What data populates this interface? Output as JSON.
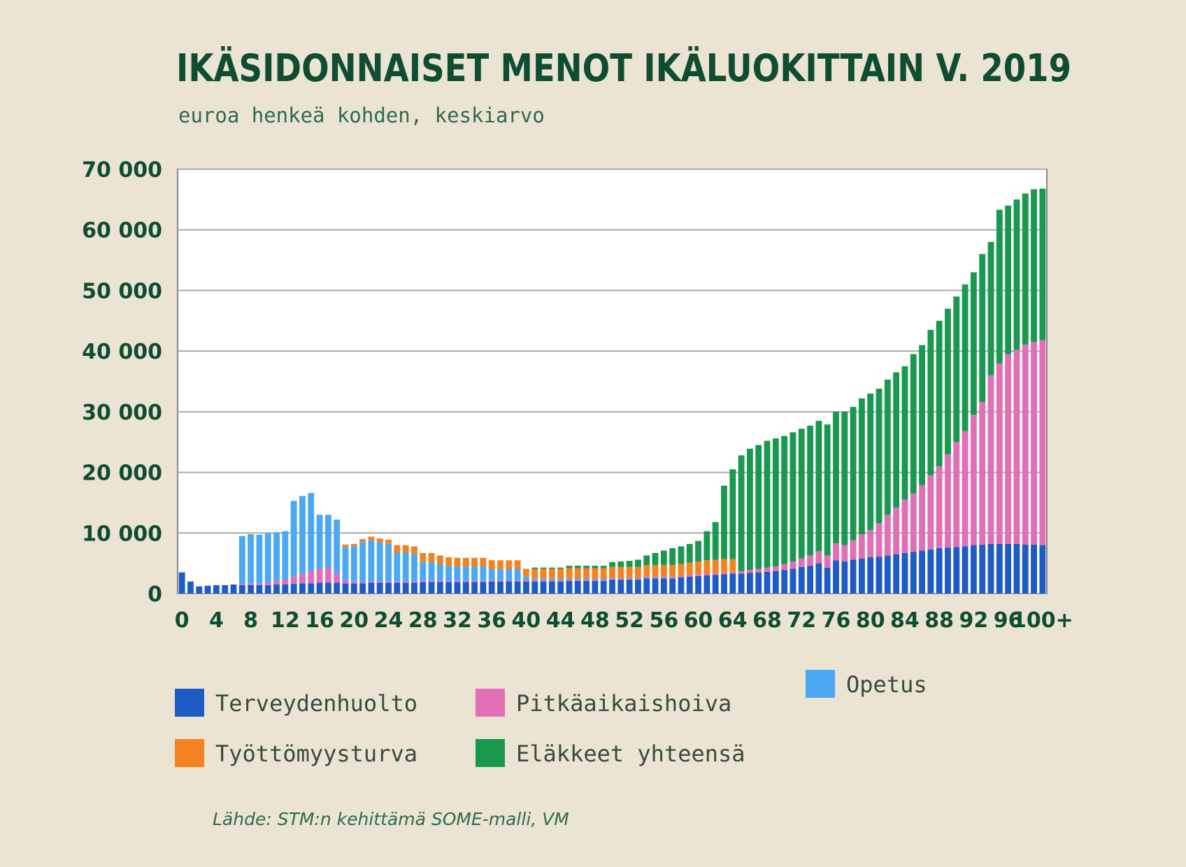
{
  "chart_data": {
    "type": "stacked_bar",
    "title": "IKÄSIDONNAISET MENOT IKÄLUOKITTAIN V. 2019",
    "subtitle": "euroa henkeä kohden, keskiarvo",
    "source": "Lähde: STM:n kehittämä SOME-malli, VM",
    "categories": [
      "0",
      null,
      null,
      null,
      "4",
      null,
      null,
      null,
      "8",
      null,
      null,
      null,
      "12",
      null,
      null,
      null,
      "16",
      null,
      null,
      null,
      "20",
      null,
      null,
      null,
      "24",
      null,
      null,
      null,
      "28",
      null,
      null,
      null,
      "32",
      null,
      null,
      null,
      "36",
      null,
      null,
      null,
      "40",
      null,
      null,
      null,
      "44",
      null,
      null,
      null,
      "48",
      null,
      null,
      null,
      "52",
      null,
      null,
      null,
      "56",
      null,
      null,
      null,
      "60",
      null,
      null,
      null,
      "64",
      null,
      null,
      null,
      "68",
      null,
      null,
      null,
      "72",
      null,
      null,
      null,
      "76",
      null,
      null,
      null,
      "80",
      null,
      null,
      null,
      "84",
      null,
      null,
      null,
      "88",
      null,
      null,
      null,
      "92",
      null,
      null,
      null,
      "96",
      null,
      null,
      null,
      "100+"
    ],
    "ylim": [
      0,
      70000
    ],
    "yticks": [
      0,
      {
        "value": 10000,
        "label": "10 000"
      },
      {
        "value": 20000,
        "label": "20 000"
      },
      {
        "value": 30000,
        "label": "30 000"
      },
      {
        "value": 40000,
        "label": "40 000"
      },
      {
        "value": 50000,
        "label": "50 000"
      },
      {
        "value": 60000,
        "label": "60 000"
      },
      {
        "value": 70000,
        "label": "70 000"
      }
    ],
    "grid": true,
    "series": [
      {
        "name": "Terveydenhuolto",
        "color": "#1f5bc4",
        "values": [
          3500,
          2000,
          1200,
          1300,
          1400,
          1400,
          1500,
          1400,
          1400,
          1400,
          1400,
          1500,
          1500,
          1600,
          1700,
          1700,
          1800,
          1800,
          1800,
          1700,
          1700,
          1700,
          1800,
          1800,
          1800,
          1800,
          1800,
          1800,
          1900,
          1900,
          1900,
          1900,
          1900,
          1900,
          1900,
          1900,
          2000,
          2000,
          2000,
          2000,
          2000,
          2000,
          2000,
          2000,
          2000,
          2100,
          2100,
          2100,
          2100,
          2100,
          2300,
          2300,
          2300,
          2300,
          2500,
          2500,
          2500,
          2500,
          2700,
          2800,
          2900,
          3000,
          3100,
          3200,
          3300,
          3300,
          3400,
          3500,
          3600,
          3700,
          3900,
          4100,
          4400,
          4600,
          5000,
          4300,
          5500,
          5300,
          5600,
          5800,
          6000,
          6100,
          6300,
          6500,
          6700,
          6900,
          7100,
          7300,
          7500,
          7600,
          7700,
          7800,
          8000,
          8100,
          8200,
          8200,
          8200,
          8200,
          8100,
          8100,
          8000
        ]
      },
      {
        "name": "Pitkäaikaishoiva",
        "color": "#e06fb5",
        "values": [
          0,
          0,
          0,
          0,
          0,
          0,
          0,
          200,
          300,
          300,
          500,
          600,
          800,
          1200,
          1600,
          2000,
          2300,
          2500,
          1500,
          500,
          300,
          200,
          200,
          200,
          200,
          200,
          200,
          200,
          200,
          200,
          200,
          200,
          200,
          200,
          200,
          200,
          200,
          200,
          200,
          200,
          200,
          200,
          200,
          200,
          200,
          200,
          200,
          200,
          200,
          200,
          200,
          200,
          200,
          200,
          200,
          200,
          200,
          200,
          200,
          300,
          300,
          300,
          300,
          300,
          300,
          400,
          500,
          600,
          700,
          800,
          1000,
          1200,
          1400,
          1700,
          2000,
          2000,
          2800,
          2700,
          3200,
          4000,
          4500,
          5500,
          6700,
          7700,
          8800,
          9600,
          10800,
          12200,
          13500,
          15400,
          17300,
          19000,
          21500,
          23500,
          27800,
          29800,
          31300,
          32000,
          33000,
          33400,
          33800
        ]
      },
      {
        "name": "Opetus",
        "color": "#4aa9f2",
        "values": [
          0,
          0,
          0,
          0,
          0,
          0,
          0,
          7900,
          8100,
          8000,
          8100,
          8000,
          8000,
          12500,
          12800,
          12900,
          8900,
          8700,
          8900,
          5500,
          5800,
          6600,
          6800,
          6500,
          6200,
          4800,
          4800,
          4500,
          3100,
          3100,
          2800,
          2500,
          2400,
          2400,
          2400,
          2400,
          1800,
          1800,
          1800,
          1800,
          600,
          300,
          300,
          300,
          300,
          200,
          200,
          200,
          200,
          200,
          100,
          100,
          100,
          100,
          100,
          100,
          100,
          100,
          0,
          0,
          0,
          0,
          0,
          0,
          0,
          0,
          0,
          0,
          0,
          0,
          0,
          0,
          0,
          0,
          0,
          0,
          0,
          0,
          0,
          0,
          0,
          0,
          0,
          0,
          0,
          0,
          0,
          0,
          0,
          0,
          0,
          0,
          0,
          0,
          0,
          0,
          0,
          0,
          0,
          0,
          0
        ]
      },
      {
        "name": "Työttömyysturva",
        "color": "#f58220",
        "values": [
          0,
          0,
          0,
          0,
          0,
          0,
          0,
          0,
          0,
          0,
          0,
          0,
          0,
          0,
          0,
          0,
          0,
          0,
          0,
          400,
          400,
          500,
          600,
          600,
          700,
          1200,
          1200,
          1300,
          1500,
          1500,
          1400,
          1400,
          1400,
          1400,
          1400,
          1400,
          1500,
          1500,
          1500,
          1500,
          1300,
          1600,
          1600,
          1600,
          1600,
          1700,
          1700,
          1700,
          1700,
          1700,
          1800,
          1800,
          1800,
          1800,
          1900,
          1900,
          1900,
          1900,
          2000,
          2000,
          2100,
          2200,
          2200,
          2200,
          2100,
          0,
          0,
          0,
          0,
          0,
          0,
          0,
          0,
          0,
          0,
          0,
          0,
          0,
          0,
          0,
          0,
          0,
          0,
          0,
          0,
          0,
          0,
          0,
          0,
          0,
          0,
          0,
          0,
          0,
          0,
          0,
          0,
          0,
          0,
          0,
          0
        ]
      },
      {
        "name": "Eläkkeet yhteensä",
        "color": "#1a9850",
        "values": [
          0,
          0,
          0,
          0,
          0,
          0,
          0,
          0,
          0,
          0,
          0,
          0,
          0,
          0,
          0,
          0,
          0,
          0,
          0,
          0,
          0,
          0,
          0,
          0,
          0,
          0,
          0,
          0,
          0,
          0,
          0,
          0,
          0,
          0,
          0,
          0,
          0,
          0,
          0,
          0,
          0,
          200,
          200,
          200,
          200,
          400,
          400,
          400,
          400,
          400,
          800,
          900,
          1000,
          1200,
          1600,
          2000,
          2400,
          2800,
          2900,
          3100,
          3400,
          4800,
          6200,
          12100,
          14800,
          19100,
          20000,
          20400,
          20900,
          21100,
          21100,
          21300,
          21400,
          21400,
          21500,
          21600,
          21700,
          22000,
          22000,
          22400,
          22500,
          22200,
          22300,
          22300,
          22000,
          23000,
          23100,
          24000,
          24000,
          24000,
          24000,
          24200,
          23500,
          24400,
          22000,
          25300,
          24500,
          24800,
          24900,
          25200,
          25000
        ]
      }
    ]
  }
}
